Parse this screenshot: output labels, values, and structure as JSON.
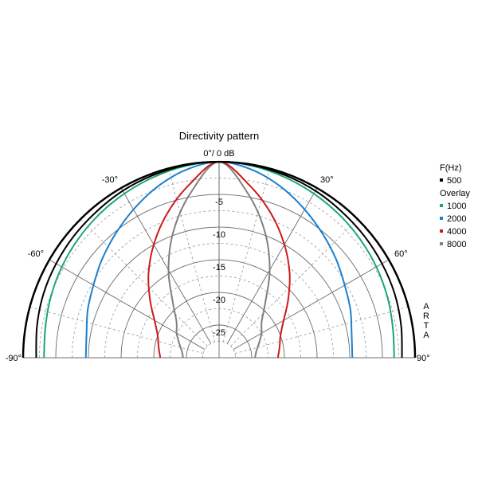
{
  "chart_data": {
    "type": "polar",
    "title": "Directivity pattern",
    "top_label": "0°/ 0 dB",
    "angle_labels": [
      {
        "angle": -90,
        "text": "-90°"
      },
      {
        "angle": -60,
        "text": "-60°"
      },
      {
        "angle": -30,
        "text": "-30°"
      },
      {
        "angle": 30,
        "text": "30°"
      },
      {
        "angle": 60,
        "text": "60°"
      },
      {
        "angle": 90,
        "text": "90°"
      }
    ],
    "radial_range_db": [
      -30,
      0
    ],
    "radial_ticks": [
      -5,
      -10,
      -15,
      -20,
      -25
    ],
    "grid": true,
    "legend": {
      "placement": "right",
      "header": "F(Hz)",
      "overlay_header": "Overlay"
    },
    "watermark": "ARTA",
    "angles": [
      0,
      10,
      20,
      30,
      40,
      50,
      60,
      70,
      80,
      90
    ],
    "series": [
      {
        "name": "500",
        "color": "#000000",
        "db": [
          0,
          -0.1,
          -0.3,
          -0.5,
          -0.8,
          -1.0,
          -1.2,
          -1.4,
          -1.7,
          -2.0
        ]
      },
      {
        "name": "1000",
        "color": "#1aa870",
        "db": [
          0,
          -0.2,
          -0.6,
          -1.0,
          -1.4,
          -1.8,
          -2.2,
          -2.6,
          -3.0,
          -3.2
        ]
      },
      {
        "name": "2000",
        "color": "#1a80d0",
        "db": [
          0,
          -0.8,
          -2.2,
          -3.8,
          -5.3,
          -6.6,
          -7.8,
          -8.6,
          -9.4,
          -9.6
        ]
      },
      {
        "name": "4000",
        "color": "#cc1a1a",
        "db": [
          0,
          -3.2,
          -6.6,
          -10.0,
          -13.2,
          -16.2,
          -18.6,
          -20.0,
          -20.6,
          -21.0
        ]
      },
      {
        "name": "8000",
        "color": "#808080",
        "db": [
          0,
          -4.5,
          -9.5,
          -14.5,
          -19.0,
          -21.5,
          -22.5,
          -23.5,
          -24.2,
          -24.5
        ]
      }
    ]
  }
}
